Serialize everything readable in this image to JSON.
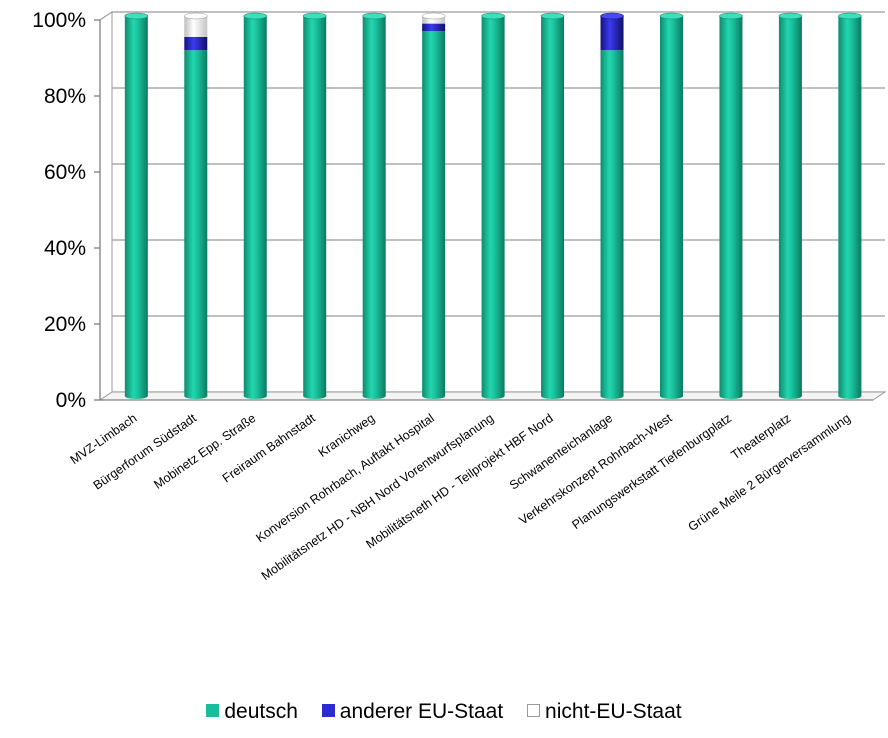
{
  "chart_data": {
    "type": "bar",
    "stacked": true,
    "percent": true,
    "categories": [
      "MVZ-Limbach",
      "Bürgerforum Südstadt",
      "Mobinetz Epp. Straße",
      "Freiraum Bahnstadt",
      "Kranichweg",
      "Konversion Rohrbach, Auftakt Hospital",
      "Mobilitätsnetz HD - NBH Nord Vorentwurfsplanung",
      "Mobilitätsneth HD - Teilprojekt HBF Nord",
      "Schwanenteichanlage",
      "Verkehrskonzept Rohrbach-West",
      "Planungswerkstatt Tiefenburgplatz",
      "Theaterplatz",
      "Grüne Meile 2 Bürgerversammlung"
    ],
    "series": [
      {
        "name": "deutsch",
        "values": [
          100,
          91,
          100,
          100,
          100,
          96,
          100,
          100,
          91,
          100,
          100,
          100,
          100
        ]
      },
      {
        "name": "anderer EU-Staat",
        "values": [
          0,
          3.5,
          0,
          0,
          0,
          2,
          0,
          0,
          9,
          0,
          0,
          0,
          0
        ]
      },
      {
        "name": "nicht-EU-Staat",
        "values": [
          0,
          5.5,
          0,
          0,
          0,
          2,
          0,
          0,
          0,
          0,
          0,
          0,
          0
        ]
      }
    ],
    "colors": {
      "deutsch": "#1abc9c",
      "anderer EU-Staat": "#2b2bd0",
      "nicht-EU-Staat": "#f2f2f2"
    },
    "ylim": [
      0,
      100
    ],
    "yticks": [
      "0%",
      "20%",
      "40%",
      "60%",
      "80%",
      "100%"
    ],
    "grid": true,
    "legend_position": "bottom"
  }
}
